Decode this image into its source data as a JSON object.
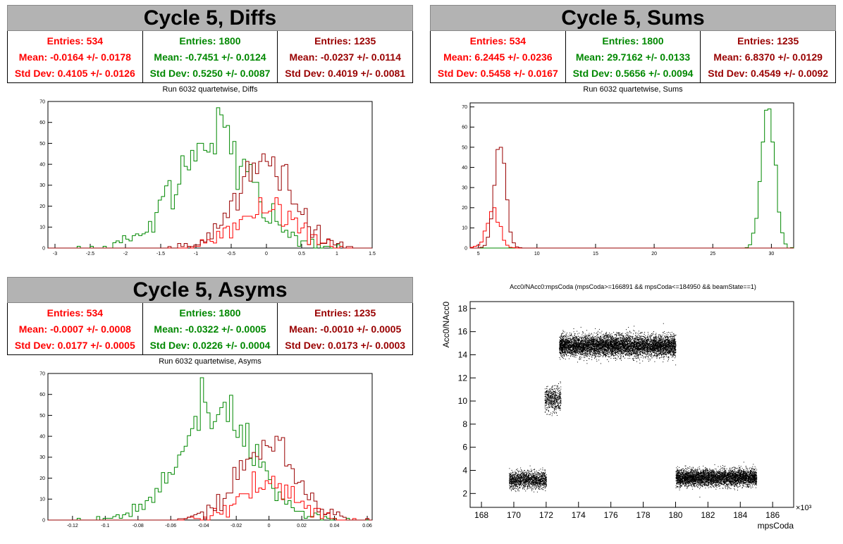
{
  "colors": {
    "red": "#ff0000",
    "green": "#008800",
    "darkred": "#990000",
    "title_bg": "#b3b3b3"
  },
  "panels": [
    {
      "title": "Cycle 5, Diffs",
      "subtitle": "Run 6032 quartetwise, Diffs",
      "stats": [
        {
          "entries": "Entries: 534",
          "mean": "Mean: -0.0164 +/- 0.0178",
          "std": "Std Dev: 0.4105 +/- 0.0126"
        },
        {
          "entries": "Entries: 1800",
          "mean": "Mean: -0.7451 +/- 0.0124",
          "std": "Std Dev: 0.5250 +/- 0.0087"
        },
        {
          "entries": "Entries: 1235",
          "mean": "Mean: -0.0237 +/- 0.0114",
          "std": "Std Dev: 0.4019 +/- 0.0081"
        }
      ]
    },
    {
      "title": "Cycle 5, Sums",
      "subtitle": "Run 6032 quartetwise, Sums",
      "stats": [
        {
          "entries": "Entries: 534",
          "mean": "Mean: 6.2445 +/- 0.0236",
          "std": "Std Dev: 0.5458 +/- 0.0167"
        },
        {
          "entries": "Entries: 1800",
          "mean": "Mean: 29.7162 +/- 0.0133",
          "std": "Std Dev: 0.5656 +/- 0.0094"
        },
        {
          "entries": "Entries: 1235",
          "mean": "Mean: 6.8370 +/- 0.0129",
          "std": "Std Dev: 0.4549 +/- 0.0092"
        }
      ]
    },
    {
      "title": "Cycle 5, Asyms",
      "subtitle": "Run 6032 quartetwise, Asyms",
      "stats": [
        {
          "entries": "Entries: 534",
          "mean": "Mean: -0.0007 +/- 0.0008",
          "std": "Std Dev: 0.0177 +/- 0.0005"
        },
        {
          "entries": "Entries: 1800",
          "mean": "Mean: -0.0322 +/- 0.0005",
          "std": "Std Dev: 0.0226 +/- 0.0004"
        },
        {
          "entries": "Entries: 1235",
          "mean": "Mean: -0.0010 +/- 0.0005",
          "std": "Std Dev: 0.0173 +/- 0.0003"
        }
      ]
    }
  ],
  "chart_data": [
    {
      "type": "histogram",
      "title": "Run 6032 quartetwise, Diffs",
      "xlim": [
        -3.1,
        1.5
      ],
      "ylim": [
        0,
        70
      ],
      "xticks": [
        -3,
        -2.5,
        -2,
        -1.5,
        -1,
        -0.5,
        0,
        0.5,
        1,
        1.5
      ],
      "yticks": [
        0,
        10,
        20,
        30,
        40,
        50,
        60,
        70
      ],
      "series": [
        {
          "color": "#008800",
          "entries": 1800,
          "mean": -0.7451,
          "std": 0.525,
          "peak": 67
        },
        {
          "color": "#ff0000",
          "entries": 534,
          "mean": -0.0164,
          "std": 0.4105,
          "peak": 24
        },
        {
          "color": "#990000",
          "entries": 1235,
          "mean": -0.0237,
          "std": 0.4019,
          "peak": 45
        }
      ]
    },
    {
      "type": "histogram",
      "title": "Run 6032 quartetwise, Sums",
      "xlim": [
        4.3,
        31.9
      ],
      "ylim": [
        0,
        72
      ],
      "xticks": [
        5,
        10,
        15,
        20,
        25,
        30
      ],
      "yticks": [
        0,
        10,
        20,
        30,
        40,
        50,
        60,
        70
      ],
      "series": [
        {
          "color": "#008800",
          "entries": 1800,
          "mean": 29.7162,
          "std": 0.5656,
          "peak": 69
        },
        {
          "color": "#ff0000",
          "entries": 534,
          "mean": 6.2445,
          "std": 0.5458,
          "peak": 20
        },
        {
          "color": "#990000",
          "entries": 1235,
          "mean": 6.837,
          "std": 0.4549,
          "peak": 50
        }
      ]
    },
    {
      "type": "histogram",
      "title": "Run 6032 quartetwise, Asyms",
      "xlim": [
        -0.135,
        0.063
      ],
      "ylim": [
        0,
        70
      ],
      "xticks": [
        -0.12,
        -0.1,
        -0.08,
        -0.06,
        -0.04,
        -0.02,
        0,
        0.02,
        0.04,
        0.06
      ],
      "yticks": [
        0,
        10,
        20,
        30,
        40,
        50,
        60,
        70
      ],
      "series": [
        {
          "color": "#008800",
          "entries": 1800,
          "mean": -0.0322,
          "std": 0.0226,
          "peak": 68
        },
        {
          "color": "#ff0000",
          "entries": 534,
          "mean": -0.0007,
          "std": 0.0177,
          "peak": 23
        },
        {
          "color": "#990000",
          "entries": 1235,
          "mean": -0.001,
          "std": 0.0173,
          "peak": 40
        }
      ]
    },
    {
      "type": "scatter",
      "title": "Acc0/NAcc0:mpsCoda (mpsCoda>=166891 && mpsCoda<=184950 && beamState==1)",
      "xlabel": "mpsCoda",
      "ylabel": "Acc0/NAcc0",
      "xexp": "×10³",
      "xlim": [
        167.3,
        187.3
      ],
      "ylim": [
        0.8,
        18.6
      ],
      "xticks": [
        168,
        170,
        172,
        174,
        176,
        178,
        180,
        182,
        184,
        186
      ],
      "yticks": [
        2,
        4,
        6,
        8,
        10,
        12,
        14,
        16,
        18
      ],
      "clusters": [
        {
          "x": [
            169.7,
            172.0
          ],
          "y": [
            3.2,
            0.35
          ],
          "n": 1400
        },
        {
          "x": [
            171.9,
            172.9
          ],
          "y": [
            10.2,
            0.55
          ],
          "n": 500
        },
        {
          "x": [
            172.8,
            180.0
          ],
          "y": [
            14.8,
            0.45
          ],
          "n": 6500
        },
        {
          "x": [
            180.0,
            185.0
          ],
          "y": [
            3.4,
            0.35
          ],
          "n": 4200
        }
      ]
    }
  ]
}
